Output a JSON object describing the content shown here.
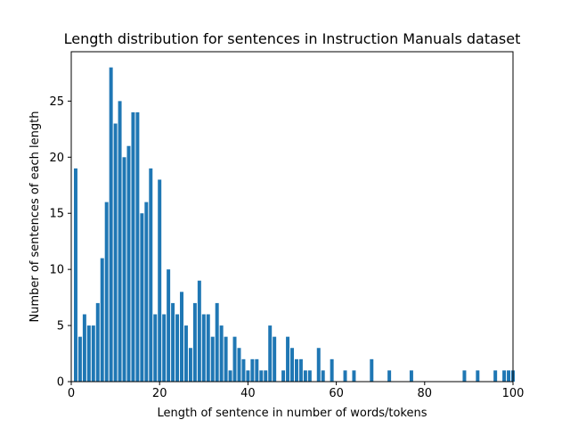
{
  "chart_data": {
    "type": "bar",
    "title": "Length distribution for sentences in Instruction Manuals dataset",
    "xlabel": "Length of sentence in number of words/tokens",
    "ylabel": "Number of sentences of each length",
    "xlim": [
      0,
      100
    ],
    "ylim": [
      0,
      29.4
    ],
    "x_ticks": [
      0,
      20,
      40,
      60,
      80,
      100
    ],
    "y_ticks": [
      0,
      5,
      10,
      15,
      20,
      25
    ],
    "grid": false,
    "bar_color": "#1f77b4",
    "x": [
      1,
      2,
      3,
      4,
      5,
      6,
      7,
      8,
      9,
      10,
      11,
      12,
      13,
      14,
      15,
      16,
      17,
      18,
      19,
      20,
      21,
      22,
      23,
      24,
      25,
      26,
      27,
      28,
      29,
      30,
      31,
      32,
      33,
      34,
      35,
      36,
      37,
      38,
      39,
      40,
      41,
      42,
      43,
      44,
      45,
      46,
      48,
      49,
      50,
      51,
      52,
      53,
      54,
      56,
      57,
      59,
      62,
      64,
      68,
      72,
      77,
      89,
      92,
      96,
      98,
      99,
      100
    ],
    "values": [
      19,
      4,
      6,
      5,
      5,
      7,
      11,
      16,
      28,
      23,
      25,
      20,
      21,
      24,
      24,
      15,
      16,
      19,
      6,
      18,
      6,
      10,
      7,
      6,
      8,
      5,
      3,
      7,
      9,
      6,
      6,
      4,
      7,
      5,
      4,
      1,
      4,
      3,
      2,
      1,
      2,
      2,
      1,
      1,
      5,
      4,
      1,
      4,
      3,
      2,
      2,
      1,
      1,
      3,
      1,
      2,
      1,
      1,
      2,
      1,
      1,
      1,
      1,
      1,
      1,
      1,
      1
    ]
  }
}
